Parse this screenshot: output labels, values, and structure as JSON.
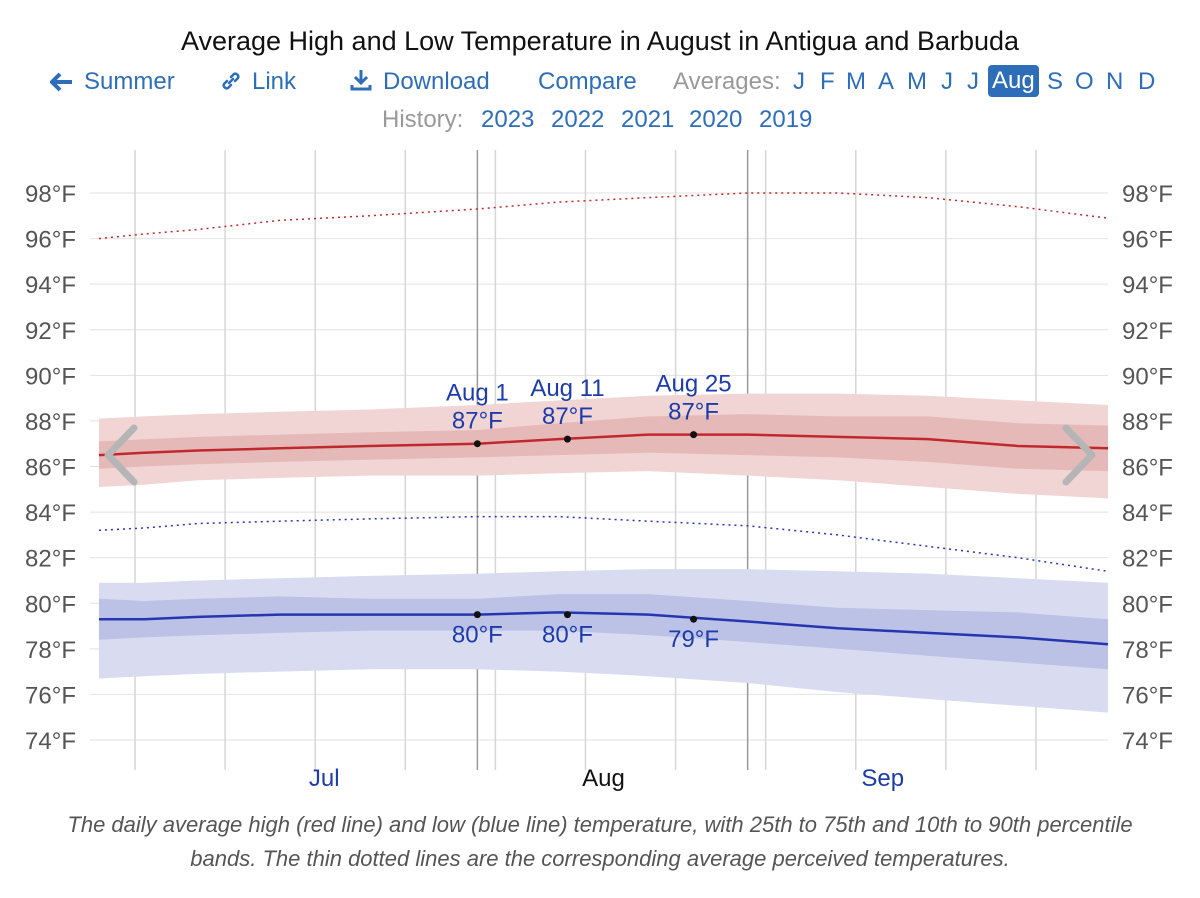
{
  "title": "Average High and Low Temperature in August in Antigua and Barbuda",
  "toolbar": {
    "summer_label": "Summer",
    "link_label": "Link",
    "download_label": "Download",
    "compare_label": "Compare",
    "averages_label": "Averages:",
    "months": [
      "J",
      "F",
      "M",
      "A",
      "M",
      "J",
      "J",
      "Aug",
      "S",
      "O",
      "N",
      "D"
    ],
    "active_month": "Aug"
  },
  "history": {
    "label": "History:",
    "years": [
      "2023",
      "2022",
      "2021",
      "2020",
      "2019"
    ]
  },
  "caption": "The daily average high (red line) and low (blue line) temperature, with 25th to 75th and 10th to 90th percentile bands. The thin dotted lines are the corresponding average perceived temperatures.",
  "colors": {
    "high": "#c0282d",
    "low": "#2636b0",
    "high_band_outer": "#f1d5d5",
    "high_band_inner": "#e6b9b9",
    "low_band_outer": "#d9dcf0",
    "low_band_inner": "#bcc1e6",
    "annotation": "#1d3ca8",
    "month_label": "#1d3ca8",
    "grid": "#e2e2e2"
  },
  "chart_data": {
    "type": "line",
    "title": "Average High and Low Temperature in August in Antigua and Barbuda",
    "y_unit": "°F",
    "ylim": [
      73,
      99.5
    ],
    "y_ticks": [
      74,
      76,
      78,
      80,
      82,
      84,
      86,
      88,
      90,
      92,
      94,
      96,
      98
    ],
    "y_tick_labels": [
      "74°F",
      "76°F",
      "78°F",
      "80°F",
      "82°F",
      "84°F",
      "86°F",
      "88°F",
      "90°F",
      "92°F",
      "94°F",
      "96°F",
      "98°F"
    ],
    "x": [
      "Jun 20",
      "Jun 25",
      "Jul 1",
      "Jul 10",
      "Jul 20",
      "Aug 1",
      "Aug 10",
      "Aug 20",
      "Aug 31",
      "Sep 10",
      "Sep 20",
      "Sep 30",
      "Oct 10"
    ],
    "month_labels": [
      {
        "label": "Jul",
        "date": "Jul 15",
        "highlight": false
      },
      {
        "label": "Aug",
        "date": "Aug 15",
        "highlight": true
      },
      {
        "label": "Sep",
        "date": "Sep 15",
        "highlight": false
      }
    ],
    "series": [
      {
        "name": "high",
        "values": [
          86.5,
          86.6,
          86.7,
          86.8,
          86.9,
          87.0,
          87.2,
          87.4,
          87.4,
          87.3,
          87.2,
          86.9,
          86.8
        ]
      },
      {
        "name": "low",
        "values": [
          79.3,
          79.3,
          79.4,
          79.5,
          79.5,
          79.5,
          79.6,
          79.5,
          79.2,
          78.9,
          78.7,
          78.5,
          78.2
        ]
      },
      {
        "name": "high_perceived",
        "values": [
          96.0,
          96.2,
          96.4,
          96.8,
          97.0,
          97.3,
          97.6,
          97.8,
          98.0,
          98.0,
          97.8,
          97.4,
          96.9
        ]
      },
      {
        "name": "low_perceived",
        "values": [
          83.2,
          83.3,
          83.5,
          83.6,
          83.7,
          83.8,
          83.8,
          83.6,
          83.4,
          83.0,
          82.5,
          82.0,
          81.4
        ]
      }
    ],
    "bands": [
      {
        "series": "high",
        "kind": "p10_p90",
        "low": [
          85.1,
          85.2,
          85.4,
          85.5,
          85.6,
          85.6,
          85.7,
          85.8,
          85.6,
          85.4,
          85.1,
          84.8,
          84.6
        ],
        "high": [
          88.1,
          88.2,
          88.3,
          88.4,
          88.5,
          88.7,
          88.9,
          89.1,
          89.2,
          89.2,
          89.1,
          88.9,
          88.7
        ]
      },
      {
        "series": "high",
        "kind": "p25_p75",
        "low": [
          85.9,
          86.0,
          86.1,
          86.2,
          86.3,
          86.4,
          86.5,
          86.6,
          86.5,
          86.4,
          86.2,
          85.9,
          85.8
        ]
      },
      {
        "series": "low",
        "kind": "p10_p90",
        "low": [
          76.7,
          76.8,
          76.9,
          77.0,
          77.1,
          77.1,
          77.0,
          76.8,
          76.5,
          76.1,
          75.8,
          75.5,
          75.2
        ],
        "high": [
          80.9,
          80.9,
          81.0,
          81.1,
          81.2,
          81.3,
          81.4,
          81.5,
          81.5,
          81.4,
          81.3,
          81.1,
          80.9
        ]
      },
      {
        "series": "low",
        "kind": "p25_p75",
        "low": [
          78.4,
          78.5,
          78.6,
          78.7,
          78.8,
          78.8,
          78.8,
          78.6,
          78.3,
          78.0,
          77.7,
          77.4,
          77.1
        ]
      }
    ],
    "annotations": [
      {
        "date": "Aug 1",
        "high_label": "87°F",
        "low_label": "80°F",
        "high_value": 87.0,
        "low_value": 79.5
      },
      {
        "date": "Aug 11",
        "high_label": "87°F",
        "low_label": "80°F",
        "high_value": 87.2,
        "low_value": 79.5
      },
      {
        "date": "Aug 25",
        "high_label": "87°F",
        "low_label": "79°F",
        "high_value": 87.4,
        "low_value": 79.3
      }
    ],
    "grid": true
  }
}
